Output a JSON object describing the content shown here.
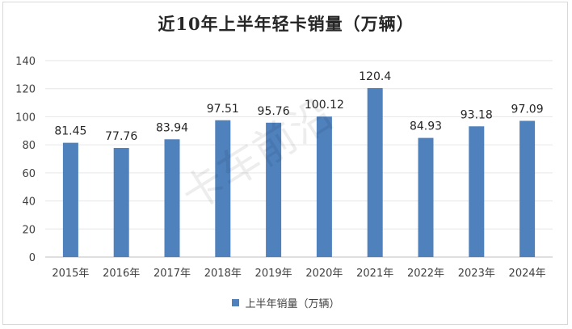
{
  "chart_data": {
    "type": "bar",
    "title": "近10年上半年轻卡销量（万辆）",
    "categories": [
      "2015年",
      "2016年",
      "2017年",
      "2018年",
      "2019年",
      "2020年",
      "2021年",
      "2022年",
      "2023年",
      "2024年"
    ],
    "series": [
      {
        "name": "上半年销量（万辆）",
        "values": [
          81.45,
          77.76,
          83.94,
          97.51,
          95.76,
          100.12,
          120.4,
          84.93,
          93.18,
          97.09
        ],
        "labels": [
          "81.45",
          "77.76",
          "83.94",
          "97.51",
          "95.76",
          "100.12",
          "120.4",
          "84.93",
          "93.18",
          "97.09"
        ]
      }
    ],
    "ylim": [
      0,
      140
    ],
    "yticks": [
      0,
      20,
      40,
      60,
      80,
      100,
      120,
      140
    ],
    "grid": true,
    "legend_position": "bottom",
    "bar_color": "#4f81bd",
    "watermark": "卡车前沿"
  }
}
